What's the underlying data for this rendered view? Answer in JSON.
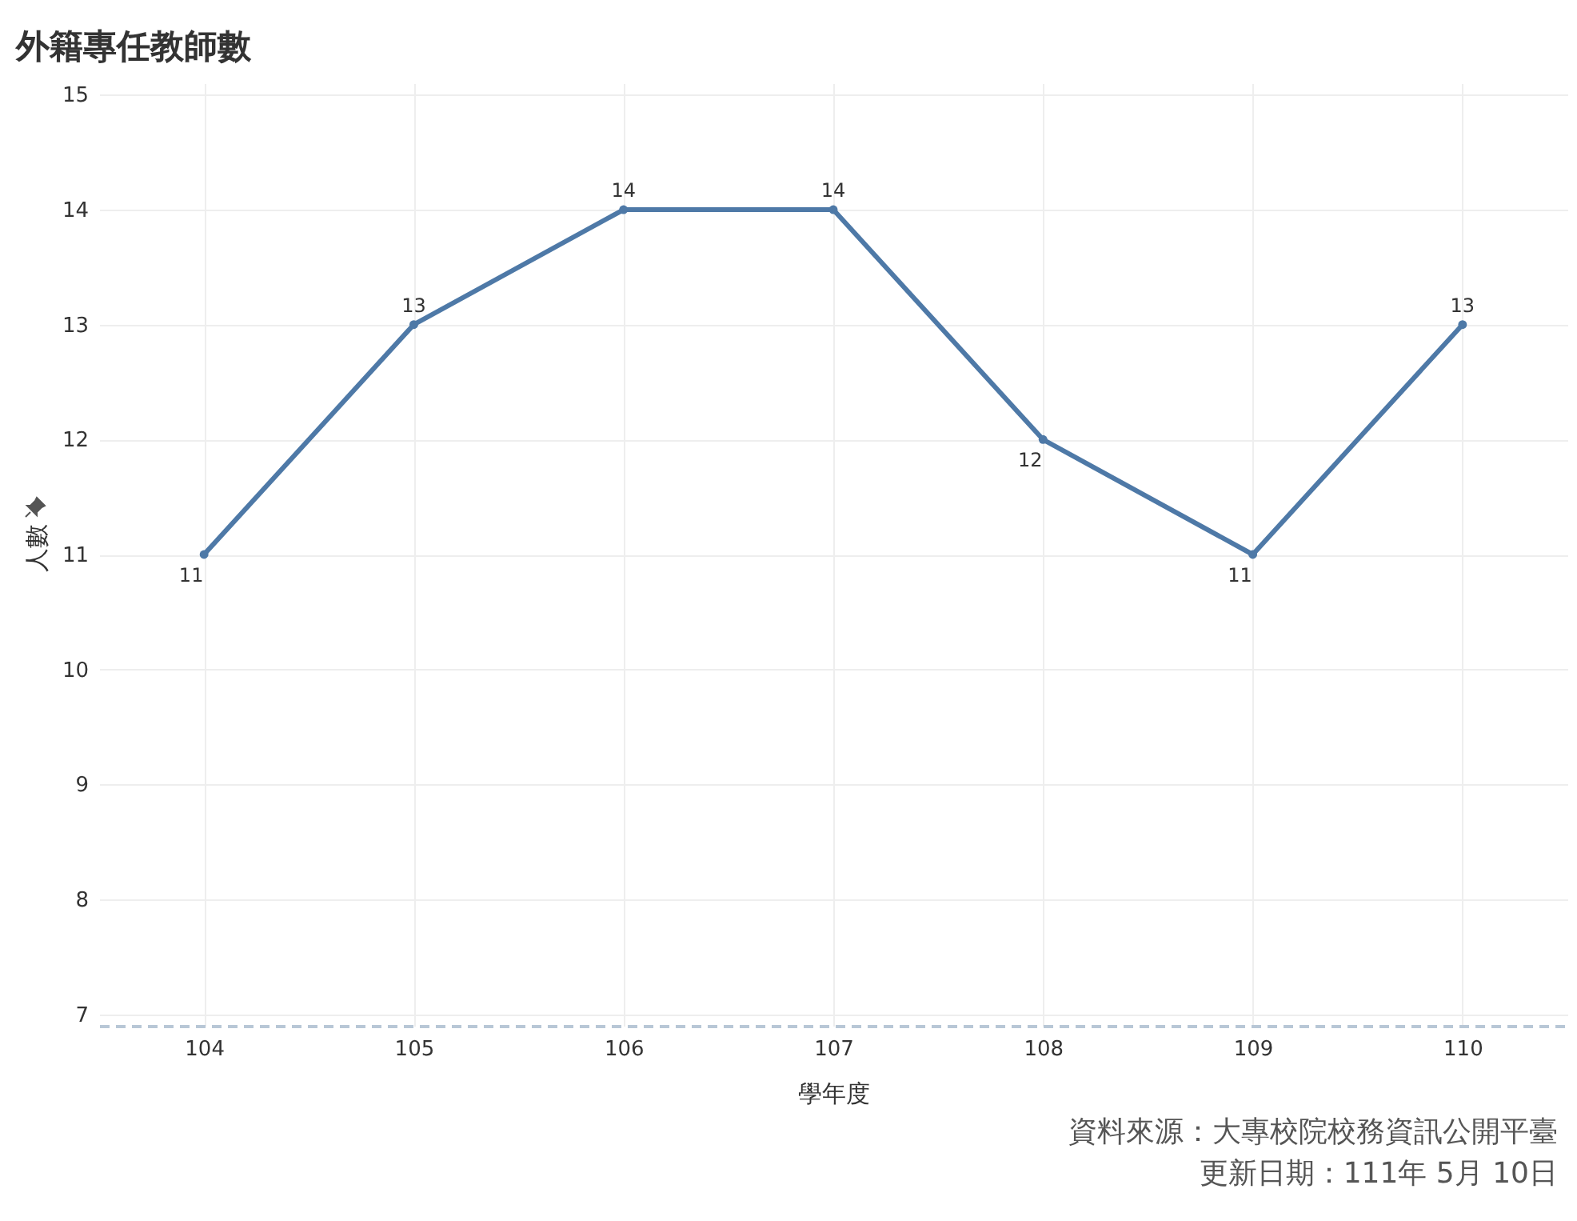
{
  "chart_data": {
    "type": "line",
    "title": "外籍專任教師數",
    "xlabel": "學年度",
    "ylabel": "人數",
    "categories": [
      "104",
      "105",
      "106",
      "107",
      "108",
      "109",
      "110"
    ],
    "series": [
      {
        "color": "#4e79a7",
        "values": [
          11,
          13,
          14,
          14,
          12,
          11,
          13
        ]
      }
    ],
    "ylim": [
      6.9,
      15.1
    ],
    "yticks": [
      7,
      8,
      9,
      10,
      11,
      12,
      13,
      14,
      15
    ],
    "grid": true,
    "data_labels": true,
    "marker": "circle",
    "annotations": [
      "資料來源：大專校院校務資訊公開平臺",
      "更新日期：111年 5月 10日"
    ]
  }
}
